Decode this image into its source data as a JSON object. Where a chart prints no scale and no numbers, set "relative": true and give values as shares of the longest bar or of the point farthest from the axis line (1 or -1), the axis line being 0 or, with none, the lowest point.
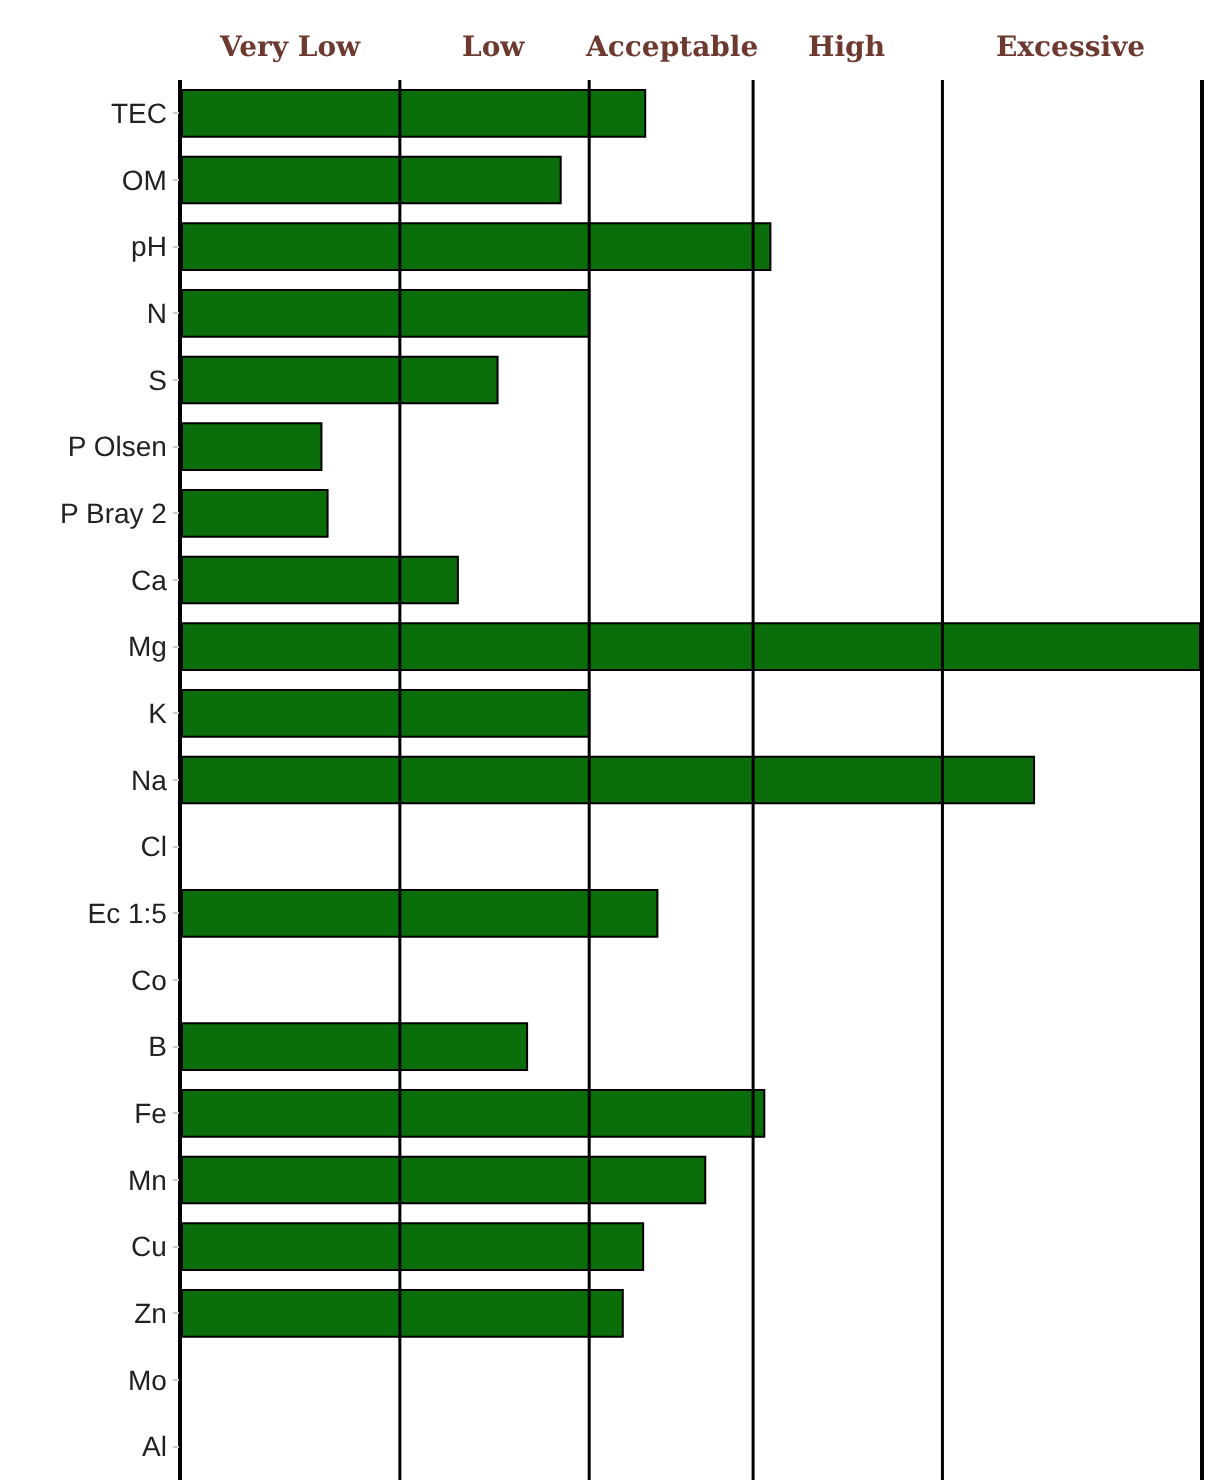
{
  "chart_data": {
    "type": "bar",
    "orientation": "horizontal",
    "relative": true,
    "grid": false,
    "categories": [
      "TEC",
      "OM",
      "pH",
      "N",
      "S",
      "P Olsen",
      "P Bray 2",
      "Ca",
      "Mg",
      "K",
      "Na",
      "Cl",
      "Ec 1:5",
      "Co",
      "B",
      "Fe",
      "Mn",
      "Cu",
      "Zn",
      "Mo",
      "Al"
    ],
    "values": [
      0.455,
      0.372,
      0.578,
      0.4,
      0.31,
      0.137,
      0.143,
      0.271,
      1,
      0.4,
      0.837,
      null,
      0.467,
      null,
      0.339,
      0.572,
      0.514,
      0.453,
      0.433,
      null,
      null
    ],
    "color": "#0a6e0a",
    "ref_lines": [
      {
        "axis": "x",
        "value": 0.214
      },
      {
        "axis": "x",
        "value": 0.4
      },
      {
        "axis": "x",
        "value": 0.561
      },
      {
        "axis": "x",
        "value": 0.747
      }
    ],
    "annotations": [
      "Very Low",
      "Low",
      "Acceptable",
      "High",
      "Excessive"
    ]
  }
}
